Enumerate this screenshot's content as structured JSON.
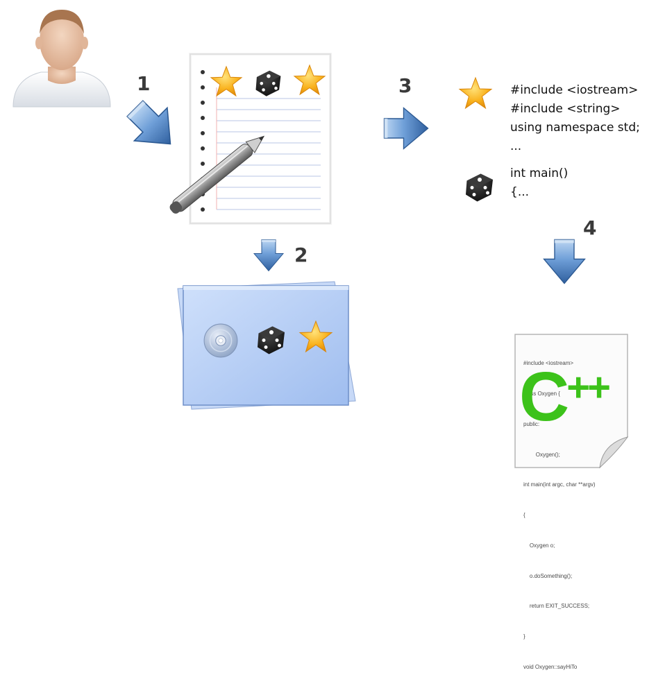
{
  "steps": {
    "s1": "1",
    "s2": "2",
    "s3": "3",
    "s4": "4"
  },
  "code_snippet": {
    "block1": [
      "#include <iostream>",
      "#include <string>",
      "using namespace std;",
      "..."
    ],
    "block2": [
      "int main()",
      "{..."
    ]
  },
  "cpp_document": {
    "logo_text": "C++",
    "code_lines": [
      "#include <iostream>",
      "class Oxygen {",
      "public:",
      "        Oxygen();",
      "int main(int argc, char **argv)",
      "{",
      "    Oxygen o;",
      "    o.doSomething();",
      "    return EXIT_SUCCESS;",
      "}",
      "void Oxygen::sayHiTo"
    ]
  },
  "colors": {
    "arrow_blue": "#4f86c6",
    "cpp_green": "#3cc21a",
    "star_gold": "#f7a81b",
    "folder_blue": "#a9c4f2"
  },
  "icons": [
    "user-avatar-icon",
    "notepad-icon",
    "pencil-icon",
    "star-icon",
    "dice-icon",
    "cd-disc-icon",
    "arrow-icon",
    "cpp-file-icon"
  ]
}
